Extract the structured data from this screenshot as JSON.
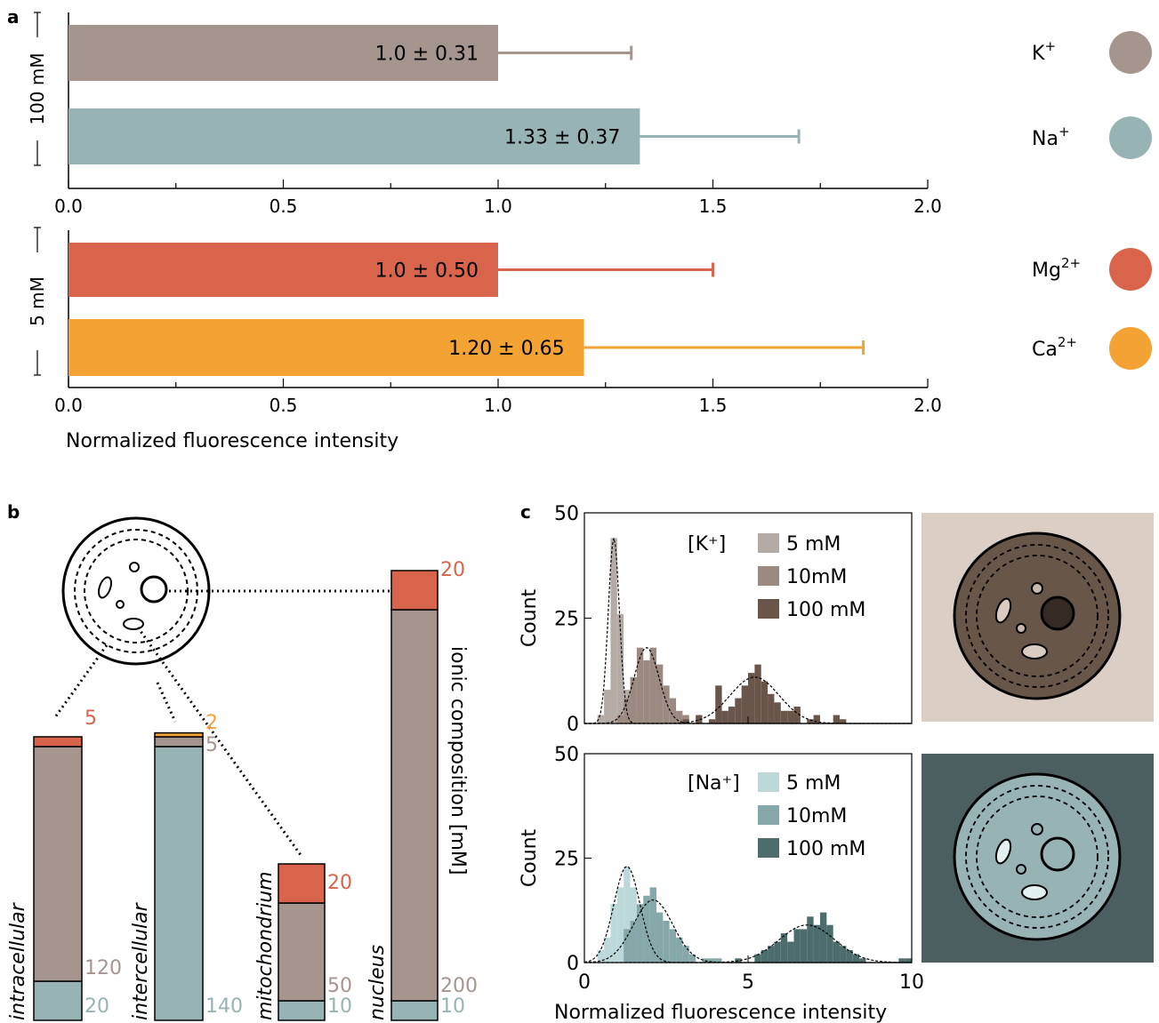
{
  "panel_labels": {
    "a": "a",
    "b": "b",
    "c": "c"
  },
  "colors": {
    "K": "#a6958f",
    "Na": "#97b3b3",
    "Mg": "#d8644c",
    "Ca": "#f2a334",
    "K_hist": [
      "#b4aba6",
      "#9c8a82",
      "#6a554b"
    ],
    "Na_hist": [
      "#bcd8d9",
      "#86a8a8",
      "#4d6d6d"
    ],
    "K_bg": "#dacec5",
    "K_cell": "#685749",
    "Na_bg": "#4b5e60",
    "Na_cell": "#97b3b3"
  },
  "panel_a": {
    "groups": [
      {
        "group_label": "100 mM",
        "bars": [
          {
            "label": "1.0 ± 0.31",
            "value": 1.0,
            "err": 0.31,
            "color_key": "K"
          },
          {
            "label": "1.33 ± 0.37",
            "value": 1.33,
            "err": 0.37,
            "color_key": "Na"
          }
        ],
        "ticks": [
          "0.0",
          "0.5",
          "1.0",
          "1.5",
          "2.0"
        ]
      },
      {
        "group_label": "5 mM",
        "bars": [
          {
            "label": "1.0 ± 0.50",
            "value": 1.0,
            "err": 0.5,
            "color_key": "Mg"
          },
          {
            "label": "1.20 ± 0.65",
            "value": 1.2,
            "err": 0.65,
            "color_key": "Ca"
          }
        ],
        "ticks": [
          "0.0",
          "0.5",
          "1.0",
          "1.5",
          "2.0"
        ]
      }
    ],
    "xlabel": "Normalized fluorescence intensity",
    "legend": [
      {
        "base": "K",
        "sup": "+",
        "color_key": "K"
      },
      {
        "base": "Na",
        "sup": "+",
        "color_key": "Na"
      },
      {
        "base": "Mg",
        "sup": "2+",
        "color_key": "Mg"
      },
      {
        "base": "Ca",
        "sup": "2+",
        "color_key": "Ca"
      }
    ]
  },
  "panel_b": {
    "ylabel": "ionic composition [mM]",
    "columns": [
      {
        "name": "intracellular",
        "segments": [
          {
            "key": "Na",
            "value": 20
          },
          {
            "key": "K",
            "value": 120
          },
          {
            "key": "Mg",
            "value": 5
          }
        ],
        "labels": [
          {
            "text": "5",
            "key": "Mg"
          },
          {
            "text": "120",
            "key": "K"
          },
          {
            "text": "20",
            "key": "Na"
          }
        ]
      },
      {
        "name": "intercellular",
        "segments": [
          {
            "key": "Na",
            "value": 140
          },
          {
            "key": "K",
            "value": 5
          },
          {
            "key": "Ca",
            "value": 2
          }
        ],
        "labels": [
          {
            "text": "2",
            "key": "Ca"
          },
          {
            "text": "5",
            "key": "K"
          },
          {
            "text": "140",
            "key": "Na"
          }
        ]
      },
      {
        "name": "mitochondrium",
        "segments": [
          {
            "key": "Na",
            "value": 10
          },
          {
            "key": "K",
            "value": 50
          },
          {
            "key": "Mg",
            "value": 20
          }
        ],
        "labels": [
          {
            "text": "20",
            "key": "Mg"
          },
          {
            "text": "50",
            "key": "K"
          },
          {
            "text": "10",
            "key": "Na"
          }
        ]
      },
      {
        "name": "nucleus",
        "segments": [
          {
            "key": "Na",
            "value": 10
          },
          {
            "key": "K",
            "value": 200
          },
          {
            "key": "Mg",
            "value": 20
          }
        ],
        "labels": [
          {
            "text": "20",
            "key": "Mg"
          },
          {
            "text": "200",
            "key": "K"
          },
          {
            "text": "10",
            "key": "Na"
          }
        ]
      }
    ]
  },
  "panel_c": {
    "xlabel": "Normalized fluorescence intensity",
    "ylabel": "Count",
    "xticks": [
      "0",
      "5",
      "10"
    ],
    "yticks": [
      "0",
      "25",
      "50"
    ],
    "xlim": [
      0,
      10
    ],
    "ylim": [
      0,
      50
    ],
    "bin_width": 0.2,
    "plots": [
      {
        "legend_title": "[K⁺]",
        "series": [
          {
            "name": "5 mM",
            "color_index": 0,
            "fit": {
              "mu": 0.9,
              "sigma": 0.17,
              "amp": 44
            },
            "counts": [
              [
                0.4,
                2
              ],
              [
                0.6,
                8
              ],
              [
                0.8,
                44
              ],
              [
                1.0,
                26
              ],
              [
                1.2,
                8
              ],
              [
                1.4,
                2
              ]
            ]
          },
          {
            "name": "10mM",
            "color_index": 1,
            "fit": {
              "mu": 1.9,
              "sigma": 0.38,
              "amp": 18
            },
            "counts": [
              [
                1.0,
                2
              ],
              [
                1.2,
                6
              ],
              [
                1.4,
                11
              ],
              [
                1.6,
                18
              ],
              [
                1.8,
                15
              ],
              [
                2.0,
                18
              ],
              [
                2.2,
                14
              ],
              [
                2.4,
                9
              ],
              [
                2.6,
                6
              ],
              [
                2.8,
                3
              ],
              [
                3.0,
                2
              ]
            ]
          },
          {
            "name": "100 mM",
            "color_index": 2,
            "fit": {
              "mu": 5.2,
              "sigma": 0.75,
              "amp": 11
            },
            "counts": [
              [
                3.0,
                1
              ],
              [
                3.4,
                2
              ],
              [
                3.8,
                1
              ],
              [
                4.0,
                9
              ],
              [
                4.2,
                3
              ],
              [
                4.4,
                4
              ],
              [
                4.6,
                6
              ],
              [
                4.8,
                9
              ],
              [
                5.0,
                12
              ],
              [
                5.2,
                14
              ],
              [
                5.4,
                10
              ],
              [
                5.6,
                7
              ],
              [
                5.8,
                5
              ],
              [
                6.0,
                3
              ],
              [
                6.2,
                3
              ],
              [
                6.4,
                4
              ],
              [
                6.8,
                1
              ],
              [
                7.0,
                2
              ],
              [
                7.6,
                2
              ],
              [
                7.8,
                1
              ]
            ]
          }
        ]
      },
      {
        "legend_title": "[Na⁺]",
        "series": [
          {
            "name": "5 mM",
            "color_index": 0,
            "fit": {
              "mu": 1.3,
              "sigma": 0.4,
              "amp": 23
            },
            "counts": [
              [
                0.4,
                3
              ],
              [
                0.6,
                6
              ],
              [
                0.8,
                14
              ],
              [
                1.0,
                18
              ],
              [
                1.2,
                23
              ],
              [
                1.4,
                18
              ],
              [
                1.6,
                12
              ],
              [
                1.8,
                8
              ],
              [
                2.0,
                4
              ],
              [
                2.2,
                2
              ]
            ]
          },
          {
            "name": "10mM",
            "color_index": 1,
            "fit": {
              "mu": 2.1,
              "sigma": 0.6,
              "amp": 15
            },
            "counts": [
              [
                1.2,
                8
              ],
              [
                1.4,
                10
              ],
              [
                1.6,
                14
              ],
              [
                1.8,
                16
              ],
              [
                2.0,
                18
              ],
              [
                2.2,
                12
              ],
              [
                2.4,
                10
              ],
              [
                2.6,
                8
              ],
              [
                2.8,
                6
              ],
              [
                3.0,
                4
              ],
              [
                3.2,
                2
              ],
              [
                3.6,
                1
              ],
              [
                3.8,
                1
              ],
              [
                4.0,
                1
              ]
            ]
          },
          {
            "name": "100 mM",
            "color_index": 2,
            "fit": {
              "mu": 6.8,
              "sigma": 0.85,
              "amp": 9
            },
            "counts": [
              [
                4.6,
                1
              ],
              [
                5.2,
                2
              ],
              [
                5.4,
                3
              ],
              [
                5.6,
                4
              ],
              [
                5.8,
                5
              ],
              [
                6.0,
                7
              ],
              [
                6.2,
                5
              ],
              [
                6.4,
                8
              ],
              [
                6.6,
                8
              ],
              [
                6.8,
                11
              ],
              [
                7.0,
                9
              ],
              [
                7.2,
                12
              ],
              [
                7.4,
                9
              ],
              [
                7.6,
                5
              ],
              [
                7.8,
                4
              ],
              [
                8.0,
                3
              ],
              [
                8.2,
                2
              ],
              [
                8.4,
                1
              ],
              [
                9.6,
                1
              ],
              [
                9.8,
                1
              ]
            ]
          }
        ]
      }
    ]
  },
  "chart_data": [
    {
      "type": "bar",
      "orientation": "horizontal",
      "title": "",
      "group": "100 mM",
      "categories": [
        "K+",
        "Na+"
      ],
      "values": [
        1.0,
        1.33
      ],
      "errors": [
        0.31,
        0.37
      ],
      "xlabel": "",
      "xlim": [
        0,
        2
      ],
      "grid": false
    },
    {
      "type": "bar",
      "orientation": "horizontal",
      "title": "",
      "group": "5 mM",
      "categories": [
        "Mg2+",
        "Ca2+"
      ],
      "values": [
        1.0,
        1.2
      ],
      "errors": [
        0.5,
        0.65
      ],
      "xlabel": "Normalized fluorescence intensity",
      "xlim": [
        0,
        2
      ],
      "grid": false
    },
    {
      "type": "bar",
      "stacked": true,
      "title": "",
      "ylabel": "ionic composition [mM]",
      "categories": [
        "intracellular",
        "intercellular",
        "mitochondrium",
        "nucleus"
      ],
      "series": [
        {
          "name": "Na+",
          "values": [
            20,
            140,
            10,
            10
          ]
        },
        {
          "name": "K+",
          "values": [
            120,
            5,
            50,
            200
          ]
        },
        {
          "name": "Mg2+",
          "values": [
            5,
            0,
            20,
            20
          ]
        },
        {
          "name": "Ca2+",
          "values": [
            0,
            2,
            0,
            0
          ]
        }
      ]
    },
    {
      "type": "histogram",
      "title": "",
      "legend_title": "[K+]",
      "xlabel": "",
      "ylabel": "Count",
      "xlim": [
        0,
        10
      ],
      "ylim": [
        0,
        50
      ],
      "series": [
        {
          "name": "5 mM",
          "peak": 0.9
        },
        {
          "name": "10mM",
          "peak": 1.9
        },
        {
          "name": "100 mM",
          "peak": 5.2
        }
      ]
    },
    {
      "type": "histogram",
      "title": "",
      "legend_title": "[Na+]",
      "xlabel": "Normalized fluorescence intensity",
      "ylabel": "Count",
      "xlim": [
        0,
        10
      ],
      "ylim": [
        0,
        50
      ],
      "series": [
        {
          "name": "5 mM",
          "peak": 1.3
        },
        {
          "name": "10mM",
          "peak": 2.1
        },
        {
          "name": "100 mM",
          "peak": 6.8
        }
      ]
    }
  ]
}
